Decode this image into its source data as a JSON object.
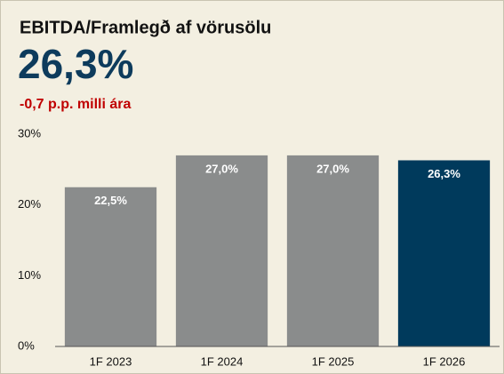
{
  "chart_data": {
    "type": "bar",
    "title": "EBITDA/Framlegð af vörusölu",
    "headline": "26,3%",
    "subtitle": "-0,7 p.p. milli ára",
    "categories": [
      "1F 2023",
      "1F 2024",
      "1F 2025",
      "1F 2026"
    ],
    "values": [
      22.5,
      27.0,
      27.0,
      26.3
    ],
    "value_labels": [
      "22,5%",
      "27,0%",
      "27,0%",
      "26,3%"
    ],
    "colors": [
      "#8a8c8c",
      "#8a8c8c",
      "#8a8c8c",
      "#003a5c"
    ],
    "ylim": [
      0,
      30
    ],
    "yticks": [
      {
        "value": 0,
        "label": "0%"
      },
      {
        "value": 10,
        "label": "10%"
      },
      {
        "value": 20,
        "label": "20%"
      },
      {
        "value": 30,
        "label": "30%"
      }
    ],
    "grid": false
  }
}
